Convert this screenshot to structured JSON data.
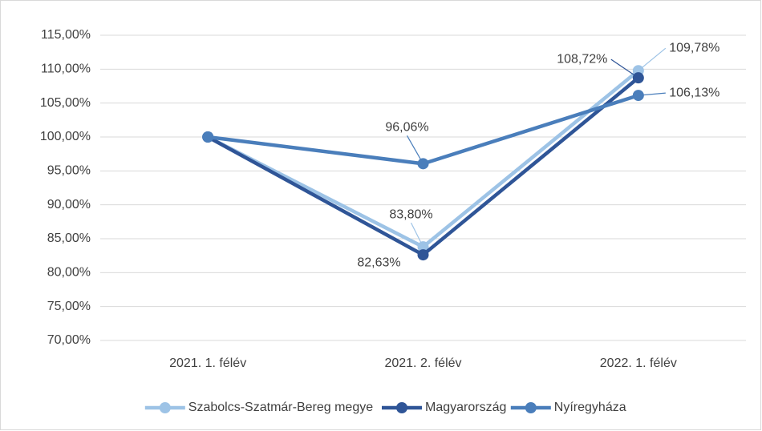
{
  "chart_data": {
    "type": "line",
    "categories": [
      "2021. 1. félév",
      "2021. 2. félév",
      "2022. 1. félév"
    ],
    "series": [
      {
        "name": "Szabolcs-Szatmár-Bereg megye",
        "color": "#9dc3e6",
        "values": [
          100,
          83.8,
          109.78
        ],
        "value_labels": [
          null,
          "83,80%",
          "109,78%"
        ]
      },
      {
        "name": "Magyarország",
        "color": "#2f5597",
        "values": [
          100,
          82.63,
          108.72
        ],
        "value_labels": [
          null,
          "82,63%",
          "108,72%"
        ]
      },
      {
        "name": "Nyíregyháza",
        "color": "#4a7ebb",
        "values": [
          100,
          96.06,
          106.13
        ],
        "value_labels": [
          null,
          "96,06%",
          "106,13%"
        ]
      }
    ],
    "ylim": [
      70,
      115
    ],
    "yticks": [
      {
        "value": 70,
        "label": "70,00%"
      },
      {
        "value": 75,
        "label": "75,00%"
      },
      {
        "value": 80,
        "label": "80,00%"
      },
      {
        "value": 85,
        "label": "85,00%"
      },
      {
        "value": 90,
        "label": "90,00%"
      },
      {
        "value": 95,
        "label": "95,00%"
      },
      {
        "value": 100,
        "label": "100,00%"
      },
      {
        "value": 105,
        "label": "105,00%"
      },
      {
        "value": 110,
        "label": "110,00%"
      },
      {
        "value": 115,
        "label": "115,00%"
      }
    ],
    "grid": true,
    "legend": "bottom"
  }
}
